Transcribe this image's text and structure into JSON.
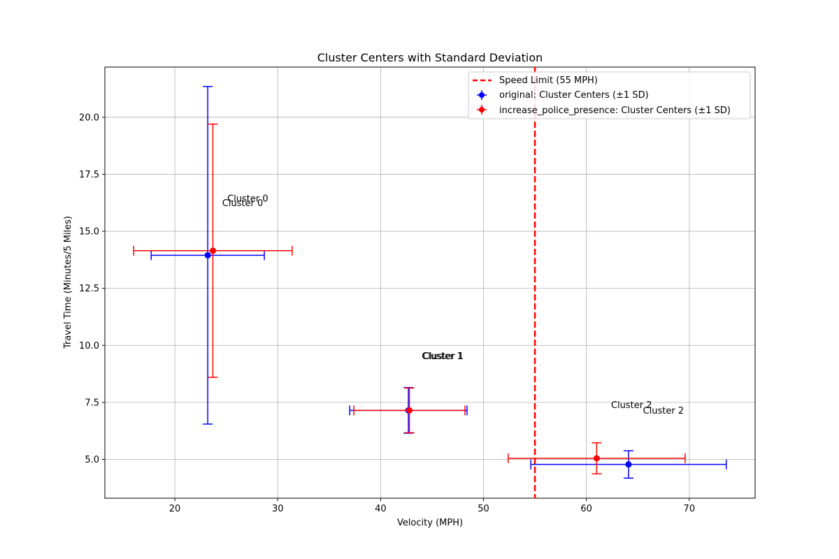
{
  "chart_data": {
    "type": "scatter",
    "title": "Cluster Centers with Standard Deviation",
    "xlabel": "Velocity (MPH)",
    "ylabel": "Travel Time (Minutes/5 Miles)",
    "xlim": [
      13.2,
      76.4
    ],
    "ylim": [
      3.3,
      22.2
    ],
    "xticks": [
      20,
      30,
      40,
      50,
      60,
      70
    ],
    "yticks": [
      5.0,
      7.5,
      10.0,
      12.5,
      15.0,
      17.5,
      20.0
    ],
    "xtick_labels": [
      "20",
      "30",
      "40",
      "50",
      "60",
      "70"
    ],
    "ytick_labels": [
      "5.0",
      "7.5",
      "10.0",
      "12.5",
      "15.0",
      "17.5",
      "20.0"
    ],
    "grid": true,
    "legend_position": "upper right",
    "speed_limit": {
      "x": 55,
      "label": "Speed Limit (55 MPH)",
      "color": "#ff0000"
    },
    "series": [
      {
        "name": "original: Cluster Centers (±1 SD)",
        "color": "#0000ff",
        "points": [
          {
            "x": 23.2,
            "y": 13.95,
            "xerr": 5.5,
            "yerr": 7.4
          },
          {
            "x": 42.7,
            "y": 7.15,
            "xerr": 5.7,
            "yerr": 1.0
          },
          {
            "x": 64.1,
            "y": 4.78,
            "xerr": 9.5,
            "yerr": 0.6
          }
        ]
      },
      {
        "name": "increase_police_presence: Cluster Centers (±1 SD)",
        "color": "#ff0000",
        "points": [
          {
            "x": 23.7,
            "y": 14.15,
            "xerr": 7.7,
            "yerr": 5.55
          },
          {
            "x": 42.8,
            "y": 7.15,
            "xerr": 5.4,
            "yerr": 0.98
          },
          {
            "x": 61.0,
            "y": 5.05,
            "xerr": 8.6,
            "yerr": 0.68
          }
        ]
      }
    ],
    "annotations": [
      {
        "text": "Cluster 0",
        "x": 25.1,
        "y": 16.3
      },
      {
        "text": "Cluster 0",
        "x": 24.6,
        "y": 16.1
      },
      {
        "text": "Cluster 1",
        "x": 44.0,
        "y": 9.4
      },
      {
        "text": "Cluster 1",
        "x": 44.1,
        "y": 9.4
      },
      {
        "text": "Cluster 2",
        "x": 62.4,
        "y": 7.25
      },
      {
        "text": "Cluster 2",
        "x": 65.5,
        "y": 7.0
      }
    ]
  }
}
